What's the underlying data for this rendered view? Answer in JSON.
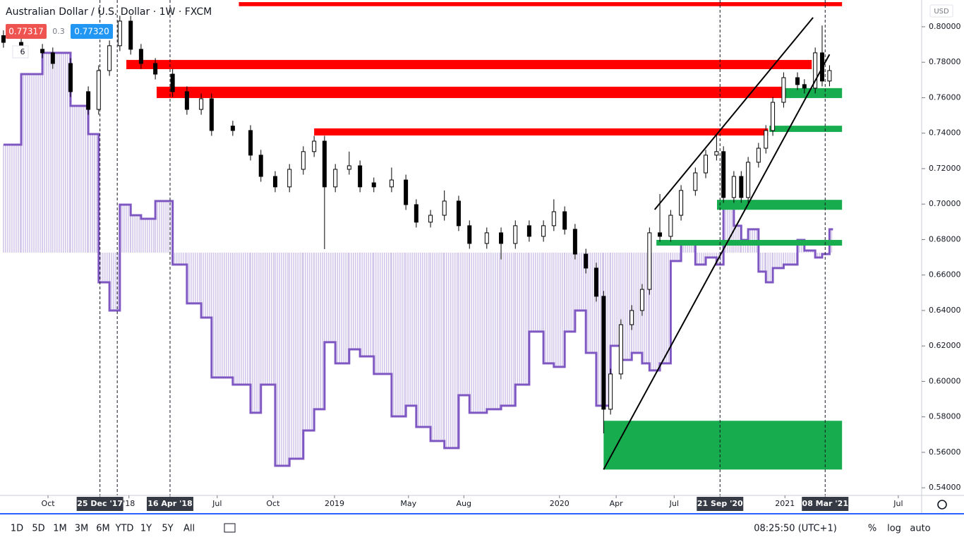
{
  "chart_data": {
    "type": "candlestick",
    "title": "Australian Dollar / U.S. Dollar · 1W · FXCM",
    "bid": "0.77317",
    "spread": "0.3",
    "ask": "0.77320",
    "indicator_count": "6",
    "currency": "USD",
    "toolbar": {
      "ranges": [
        "1D",
        "5D",
        "1M",
        "3M",
        "6M",
        "YTD",
        "1Y",
        "5Y",
        "All"
      ],
      "clock": "08:25:50 (UTC+1)",
      "percent": "%",
      "log": "log",
      "auto": "auto"
    },
    "xlim": [
      -77.3,
      135.7
    ],
    "ylim": [
      0.5357,
      0.8151
    ],
    "xticks": [
      {
        "value": -66.2,
        "label": "Oct"
      },
      {
        "value": -54.2,
        "label": "25 Dec '17"
      },
      {
        "value": -47.5,
        "label": "'18"
      },
      {
        "value": -38,
        "label": "16 Apr '18"
      },
      {
        "value": -27.1,
        "label": "Jul"
      },
      {
        "value": -14.2,
        "label": "Oct"
      },
      {
        "value": 0,
        "label": "2019"
      },
      {
        "value": 17.1,
        "label": "May"
      },
      {
        "value": 29.9,
        "label": "Aug"
      },
      {
        "value": 52,
        "label": "2020"
      },
      {
        "value": 65.1,
        "label": "Apr"
      },
      {
        "value": 78.5,
        "label": "Jul"
      },
      {
        "value": 89.1,
        "label": "21 Sep '20"
      },
      {
        "value": 104.1,
        "label": "2021"
      },
      {
        "value": 113.4,
        "label": "08 Mar '21"
      },
      {
        "value": 130.3,
        "label": "Jul"
      }
    ],
    "yticks": [
      {
        "value": 0.54,
        "label": "0.54000"
      },
      {
        "value": 0.56,
        "label": "0.56000"
      },
      {
        "value": 0.58,
        "label": "0.58000"
      },
      {
        "value": 0.6,
        "label": "0.60000"
      },
      {
        "value": 0.62,
        "label": "0.62000"
      },
      {
        "value": 0.64,
        "label": "0.64000"
      },
      {
        "value": 0.66,
        "label": "0.66000"
      },
      {
        "value": 0.68,
        "label": "0.68000"
      },
      {
        "value": 0.7,
        "label": "0.70000"
      },
      {
        "value": 0.72,
        "label": "0.72000"
      },
      {
        "value": 0.74,
        "label": "0.74000"
      },
      {
        "value": 0.76,
        "label": "0.76000"
      },
      {
        "value": 0.78,
        "label": "0.78000"
      },
      {
        "value": 0.8,
        "label": "0.80000"
      }
    ],
    "vlines": [
      -54.2,
      -50.2,
      -38,
      89.1,
      113.4
    ],
    "x": [
      -76.5,
      -72.4,
      -67.5,
      -65.1,
      -61.0,
      -56.9,
      -54.5,
      -52.0,
      -49.6,
      -47.1,
      -44.7,
      -41.4,
      -37.4,
      -34.1,
      -30.8,
      -28.4,
      -23.5,
      -19.4,
      -17.0,
      -13.7,
      -10.4,
      -7.2,
      -4.7,
      -2.3,
      0.2,
      3.4,
      5.9,
      9.1,
      13.2,
      16.5,
      18.9,
      22.2,
      25.4,
      28.7,
      31.2,
      35.2,
      38.5,
      41.8,
      45.0,
      48.3,
      50.7,
      53.2,
      55.6,
      58.1,
      60.5,
      62.2,
      63.8,
      66.2,
      68.7,
      71.1,
      72.8,
      75.2,
      77.7,
      80.1,
      83.4,
      85.8,
      88.3,
      89.9,
      92.3,
      94.0,
      95.6,
      98.0,
      99.7,
      101.3,
      103.8,
      107.0,
      108.6,
      111.1,
      112.7,
      114.4
    ],
    "open": [
      0.795,
      0.7912,
      0.7873,
      0.7853,
      0.7793,
      0.7634,
      0.7534,
      0.7753,
      0.7893,
      0.8032,
      0.7873,
      0.7793,
      0.7733,
      0.7634,
      0.7534,
      0.7594,
      0.744,
      0.7415,
      0.7276,
      0.7156,
      0.7097,
      0.7196,
      0.7296,
      0.7355,
      0.7097,
      0.7196,
      0.7216,
      0.712,
      0.7097,
      0.7136,
      0.6997,
      0.6898,
      0.6937,
      0.7017,
      0.6878,
      0.6778,
      0.6838,
      0.6778,
      0.6878,
      0.6818,
      0.6878,
      0.6957,
      0.6858,
      0.6718,
      0.6639,
      0.648,
      0.5843,
      0.6042,
      0.632,
      0.64,
      0.6519,
      0.6838,
      0.6818,
      0.6937,
      0.7077,
      0.7176,
      0.7276,
      0.7296,
      0.7037,
      0.7156,
      0.7037,
      0.7236,
      0.7315,
      0.7415,
      0.7574,
      0.7713,
      0.7674,
      0.7654,
      0.7853,
      0.7694
    ],
    "high": [
      0.798,
      0.7942,
      0.7903,
      0.7883,
      0.7823,
      0.7664,
      0.7783,
      0.7923,
      0.8062,
      0.8062,
      0.7903,
      0.7823,
      0.7763,
      0.7664,
      0.7624,
      0.7624,
      0.747,
      0.7445,
      0.7306,
      0.7186,
      0.7226,
      0.7326,
      0.7385,
      0.7385,
      0.7226,
      0.7296,
      0.7246,
      0.715,
      0.7206,
      0.7166,
      0.7027,
      0.6967,
      0.7077,
      0.7047,
      0.6908,
      0.6868,
      0.6868,
      0.6908,
      0.6908,
      0.6908,
      0.7027,
      0.6987,
      0.6888,
      0.6748,
      0.6669,
      0.651,
      0.6072,
      0.635,
      0.643,
      0.6549,
      0.6868,
      0.7057,
      0.6967,
      0.7107,
      0.7206,
      0.7306,
      0.7396,
      0.7326,
      0.7186,
      0.7186,
      0.7266,
      0.7345,
      0.7445,
      0.7604,
      0.7743,
      0.7743,
      0.7704,
      0.7883,
      0.8007,
      0.7783
    ],
    "low": [
      0.7882,
      0.7843,
      0.7823,
      0.7763,
      0.7604,
      0.7504,
      0.7504,
      0.7723,
      0.7863,
      0.7843,
      0.7763,
      0.7703,
      0.7604,
      0.7504,
      0.7504,
      0.7385,
      0.7385,
      0.7246,
      0.7126,
      0.7067,
      0.7067,
      0.7166,
      0.7266,
      0.6746,
      0.7067,
      0.7166,
      0.7067,
      0.7067,
      0.7067,
      0.6967,
      0.6868,
      0.6868,
      0.6907,
      0.6848,
      0.6748,
      0.6748,
      0.6688,
      0.6748,
      0.6788,
      0.6788,
      0.6848,
      0.6828,
      0.6688,
      0.6609,
      0.645,
      0.5707,
      0.5813,
      0.6012,
      0.629,
      0.637,
      0.6489,
      0.6788,
      0.6788,
      0.6907,
      0.7047,
      0.7146,
      0.7246,
      0.7007,
      0.7007,
      0.7007,
      0.7007,
      0.7206,
      0.7285,
      0.7385,
      0.7544,
      0.7644,
      0.7624,
      0.7624,
      0.7664,
      0.7664
    ],
    "close": [
      0.7912,
      0.7873,
      0.7853,
      0.7793,
      0.7634,
      0.7534,
      0.7753,
      0.7893,
      0.8032,
      0.7873,
      0.7793,
      0.7733,
      0.7634,
      0.7534,
      0.7594,
      0.7415,
      0.7415,
      0.7276,
      0.7156,
      0.7097,
      0.7196,
      0.7296,
      0.7355,
      0.7097,
      0.7196,
      0.7216,
      0.7097,
      0.7097,
      0.7136,
      0.6997,
      0.6898,
      0.6937,
      0.7017,
      0.6878,
      0.6778,
      0.6838,
      0.6778,
      0.6878,
      0.6818,
      0.6878,
      0.6957,
      0.6858,
      0.6718,
      0.6639,
      0.648,
      0.5843,
      0.6042,
      0.632,
      0.64,
      0.6519,
      0.6838,
      0.6818,
      0.6937,
      0.7077,
      0.7176,
      0.7276,
      0.7296,
      0.7037,
      0.7156,
      0.7037,
      0.7236,
      0.7315,
      0.7415,
      0.7574,
      0.7713,
      0.7674,
      0.7654,
      0.7853,
      0.7694,
      0.7753
    ],
    "up_color": "#ffffff",
    "down_color": "#000000",
    "indicator": {
      "color": "#7e57c2",
      "fill": "#d1c4e9",
      "baseline": 0.6726,
      "values": [
        0.7335,
        0.7733,
        0.7853,
        0.7853,
        0.7554,
        0.7395,
        0.6559,
        0.64,
        0.6997,
        0.6937,
        0.6917,
        0.7017,
        0.6659,
        0.644,
        0.636,
        0.6022,
        0.5982,
        0.5823,
        0.5982,
        0.5524,
        0.5564,
        0.5723,
        0.5843,
        0.6221,
        0.6102,
        0.6181,
        0.6141,
        0.6042,
        0.5803,
        0.5863,
        0.5743,
        0.5664,
        0.5624,
        0.5922,
        0.5823,
        0.5843,
        0.5863,
        0.5982,
        0.6281,
        0.6102,
        0.6082,
        0.6281,
        0.64,
        0.6161,
        0.5863,
        0.5863,
        0.6201,
        0.6121,
        0.6161,
        0.6102,
        0.6062,
        0.6102,
        0.6679,
        0.6778,
        0.6659,
        0.6699,
        0.6659,
        0.6997,
        0.6878,
        0.6798,
        0.6858,
        0.6619,
        0.6559,
        0.6639,
        0.6659,
        0.6798,
        0.6738,
        0.6699,
        0.6718,
        0.6858
      ]
    },
    "zones": [
      {
        "x": [
          -22.1,
          117.3
        ],
        "y": [
          0.8116,
          0.8139
        ],
        "color": "#ff0000"
      },
      {
        "x": [
          -48.1,
          110.3
        ],
        "y": [
          0.7761,
          0.7813
        ],
        "color": "#ff0000"
      },
      {
        "x": [
          -41.1,
          103.3
        ],
        "y": [
          0.7598,
          0.7662
        ],
        "color": "#ff0000"
      },
      {
        "x": [
          -4.7,
          100.2
        ],
        "y": [
          0.7387,
          0.7427
        ],
        "color": "#ff0000"
      },
      {
        "x": [
          103.8,
          117.3
        ],
        "y": [
          0.7598,
          0.7654
        ],
        "color": "#17ad4f"
      },
      {
        "x": [
          100.5,
          117.3
        ],
        "y": [
          0.7407,
          0.7442
        ],
        "color": "#17ad4f"
      },
      {
        "x": [
          88.4,
          117.3
        ],
        "y": [
          0.6968,
          0.7024
        ],
        "color": "#17ad4f"
      },
      {
        "x": [
          74.4,
          117.3
        ],
        "y": [
          0.6766,
          0.6798
        ],
        "color": "#17ad4f"
      },
      {
        "x": [
          62.2,
          117.3
        ],
        "y": [
          0.5503,
          0.5778
        ],
        "color": "#17ad4f"
      }
    ],
    "trendlines": [
      {
        "x": [
          74.0,
          110.6
        ],
        "y": [
          0.6969,
          0.8052
        ]
      },
      {
        "x": [
          62.2,
          114.4
        ],
        "y": [
          0.5503,
          0.7844
        ]
      }
    ]
  }
}
